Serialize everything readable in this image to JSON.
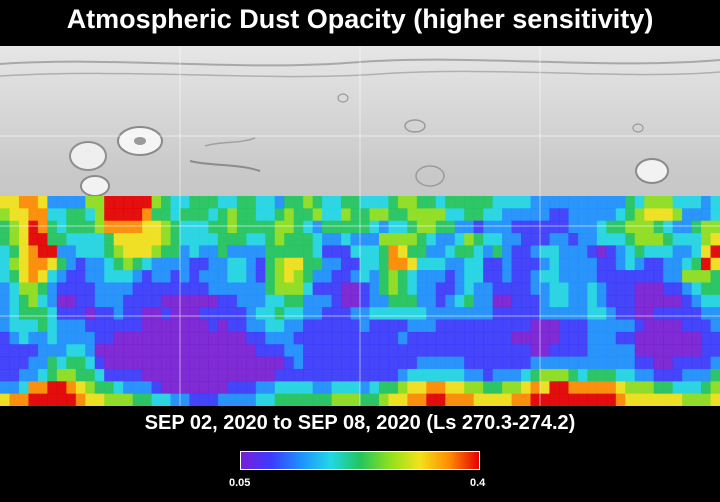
{
  "title": "Atmospheric Dust Opacity (higher sensitivity)",
  "date_range": "SEP 02, 2020 to SEP 08, 2020 (Ls 270.3-274.2)",
  "colorbar": {
    "min_label": "0.05",
    "max_label": "0.4",
    "min_value": 0.05,
    "max_value": 0.4,
    "colors": [
      "#7a1fd6",
      "#3b3bff",
      "#1e90ff",
      "#21d7e6",
      "#22c55e",
      "#8ee01d",
      "#f2e21a",
      "#ff8c00",
      "#e60000"
    ]
  },
  "opacity_map": {
    "rows": [
      "7788733336699999654455544554435565445544456655455555444433333333335466644434",
      "6778844554699998554555456554456556446556655666644554433333223333345677763334",
      "5679854555688887765444556555566543555554344566553323332222223334556665433566",
      "5679955444457777765444455544565554334333666654334654433222332334445666544467",
      "4578993344456777655343353333555554222444587553345543532234433321234544433479",
      "4678875323345654333322334432567755332244588744433442232223433332234322334597",
      "4578743223344432332323334432567653322343565433323442232234433332222222336665",
      "3466532222333322222222333333566642221123565433223433222233443343222111223455",
      "3456431122333222211111122333445533321123355533234533112223443343222111112344",
      "3455542221223221121112222234454433222334444443333333222223333344322112222233",
      "3444543332222221111111212233443322222232222333222222222211122233333211112223",
      "2343343333221111111111111122333222222222223222222222221111122233322111111122",
      "2222333443111111111111111112223322222222222222222222222211222233333111111122",
      "2223354554211111111111111111112322222222222233333222222233333333333221122223",
      "2233456655422221111111111111122222222222223444444332333456665455544332223335",
      "3348899876554333211111112223344443344434556778877665566787998888876665544456",
      "7889999987766655443322233334455555566655677889988877778899999999987777776667"
    ]
  }
}
